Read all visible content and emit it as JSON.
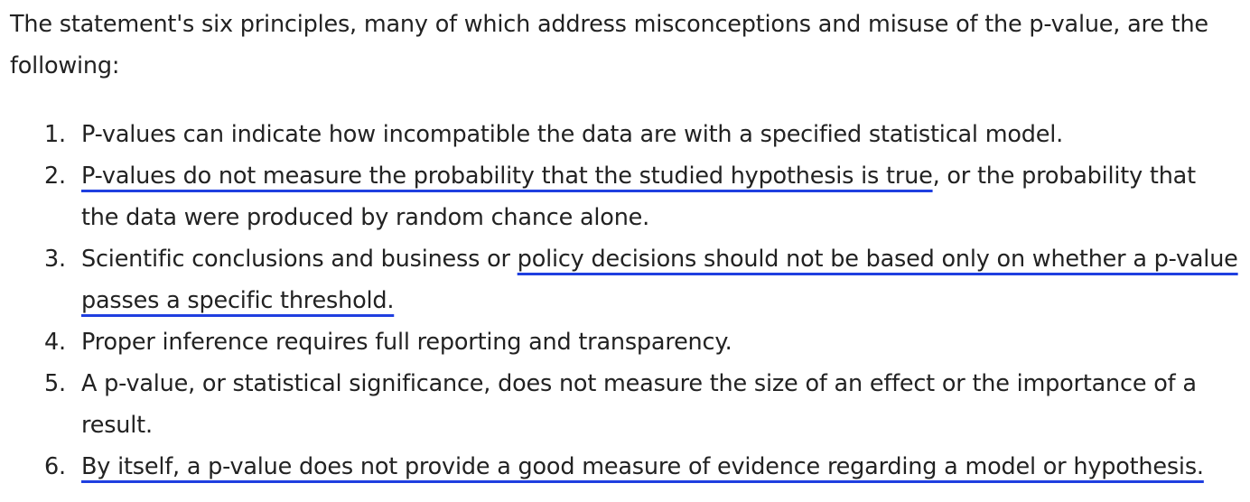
{
  "intro": "The statement's six principles, many of which address misconceptions and misuse of the p-value, are the following:",
  "highlight_color": "#1f3fe0",
  "principles": [
    {
      "number": "1.",
      "before": "",
      "highlighted": "",
      "after": "P-values can indicate how incompatible the data are with a specified statistical model."
    },
    {
      "number": "2.",
      "before": "",
      "highlighted": "P-values do not measure the probability that the studied hypothesis is true",
      "after": ", or the probability that the data were produced by random chance alone."
    },
    {
      "number": "3.",
      "before": "Scientific conclusions and business or ",
      "highlighted": "policy decisions should not be based only on whether a p-value passes a specific threshold.",
      "after": ""
    },
    {
      "number": "4.",
      "before": "",
      "highlighted": "",
      "after": "Proper inference requires full reporting and transparency."
    },
    {
      "number": "5.",
      "before": "",
      "highlighted": "",
      "after": "A p-value, or statistical significance, does not measure the size of an effect or the importance of a result."
    },
    {
      "number": "6.",
      "before": "",
      "highlighted": "By itself, a p-value does not provide a good measure of evidence regarding a model or hypothesis.",
      "after": ""
    }
  ]
}
